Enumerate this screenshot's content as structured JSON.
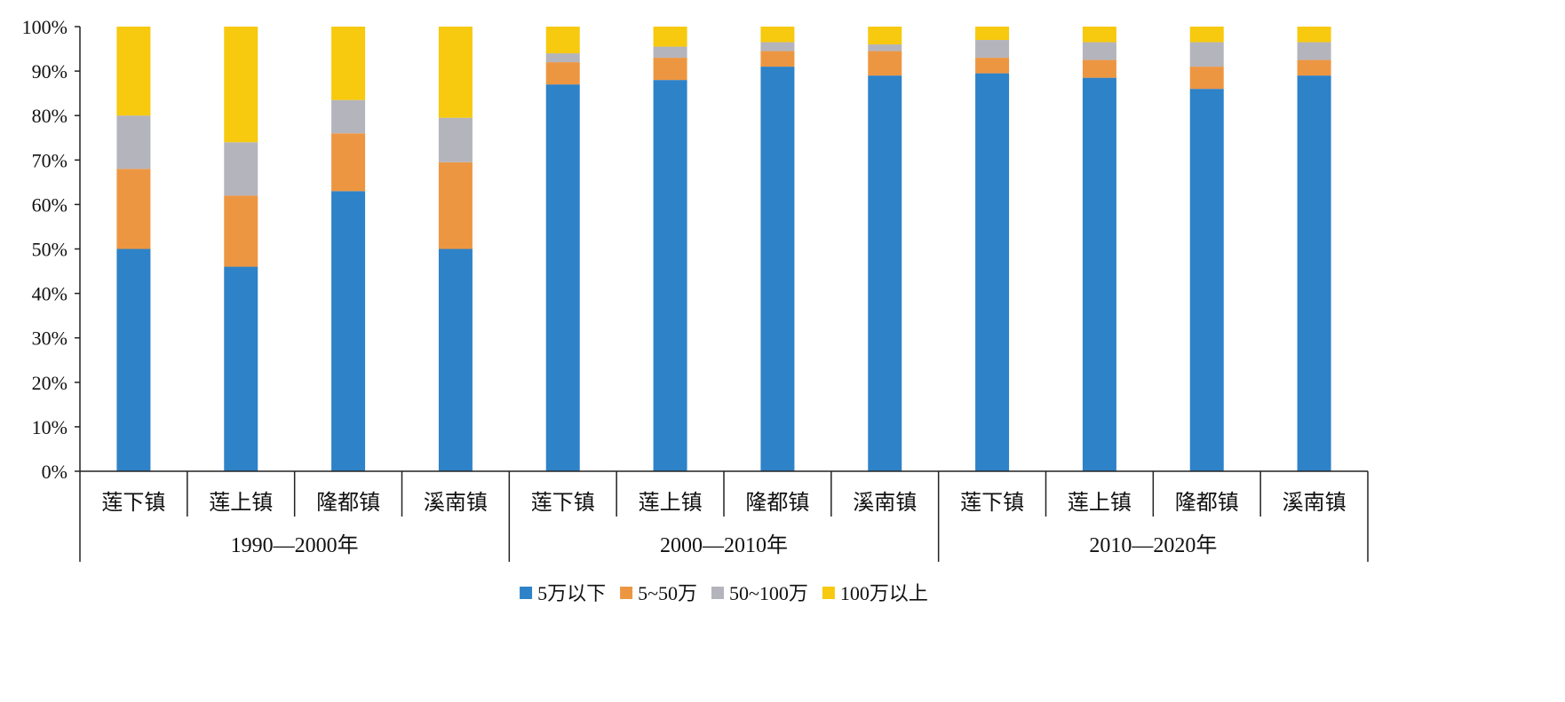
{
  "chart_data": {
    "type": "bar",
    "stacked": true,
    "title": "",
    "xlabel": "",
    "ylabel": "",
    "ylim": [
      0,
      100
    ],
    "y_tick_values": [
      0,
      10,
      20,
      30,
      40,
      50,
      60,
      70,
      80,
      90,
      100
    ],
    "y_tick_labels": [
      "0%",
      "10%",
      "20%",
      "30%",
      "40%",
      "50%",
      "60%",
      "70%",
      "80%",
      "90%",
      "100%"
    ],
    "grid": false,
    "legend_position": "bottom",
    "groups": [
      {
        "label": "1990—2000年",
        "categories": [
          "莲下镇",
          "莲上镇",
          "隆都镇",
          "溪南镇"
        ]
      },
      {
        "label": "2000—2010年",
        "categories": [
          "莲下镇",
          "莲上镇",
          "隆都镇",
          "溪南镇"
        ]
      },
      {
        "label": "2010—2020年",
        "categories": [
          "莲下镇",
          "莲上镇",
          "隆都镇",
          "溪南镇"
        ]
      }
    ],
    "categories": [
      "莲下镇",
      "莲上镇",
      "隆都镇",
      "溪南镇",
      "莲下镇",
      "莲上镇",
      "隆都镇",
      "溪南镇",
      "莲下镇",
      "莲上镇",
      "隆都镇",
      "溪南镇"
    ],
    "series": [
      {
        "name": "5万以下",
        "color": "#2e82c8",
        "values": [
          50,
          46,
          63,
          50,
          87,
          88,
          91,
          89,
          89.5,
          88.5,
          86,
          89
        ]
      },
      {
        "name": "5~50万",
        "color": "#ed9642",
        "values": [
          18,
          16,
          13,
          19.5,
          5,
          5,
          3.5,
          5.5,
          3.5,
          4,
          5,
          3.5
        ]
      },
      {
        "name": "50~100万",
        "color": "#b4b4bc",
        "values": [
          12,
          12,
          7.5,
          10,
          2,
          2.5,
          2,
          1.5,
          4,
          4,
          5.5,
          4
        ]
      },
      {
        "name": "100万以上",
        "color": "#f7c90f",
        "values": [
          20,
          26,
          16.5,
          20.5,
          6,
          4.5,
          3.5,
          4,
          3,
          3.5,
          3.5,
          3.5
        ]
      }
    ]
  }
}
